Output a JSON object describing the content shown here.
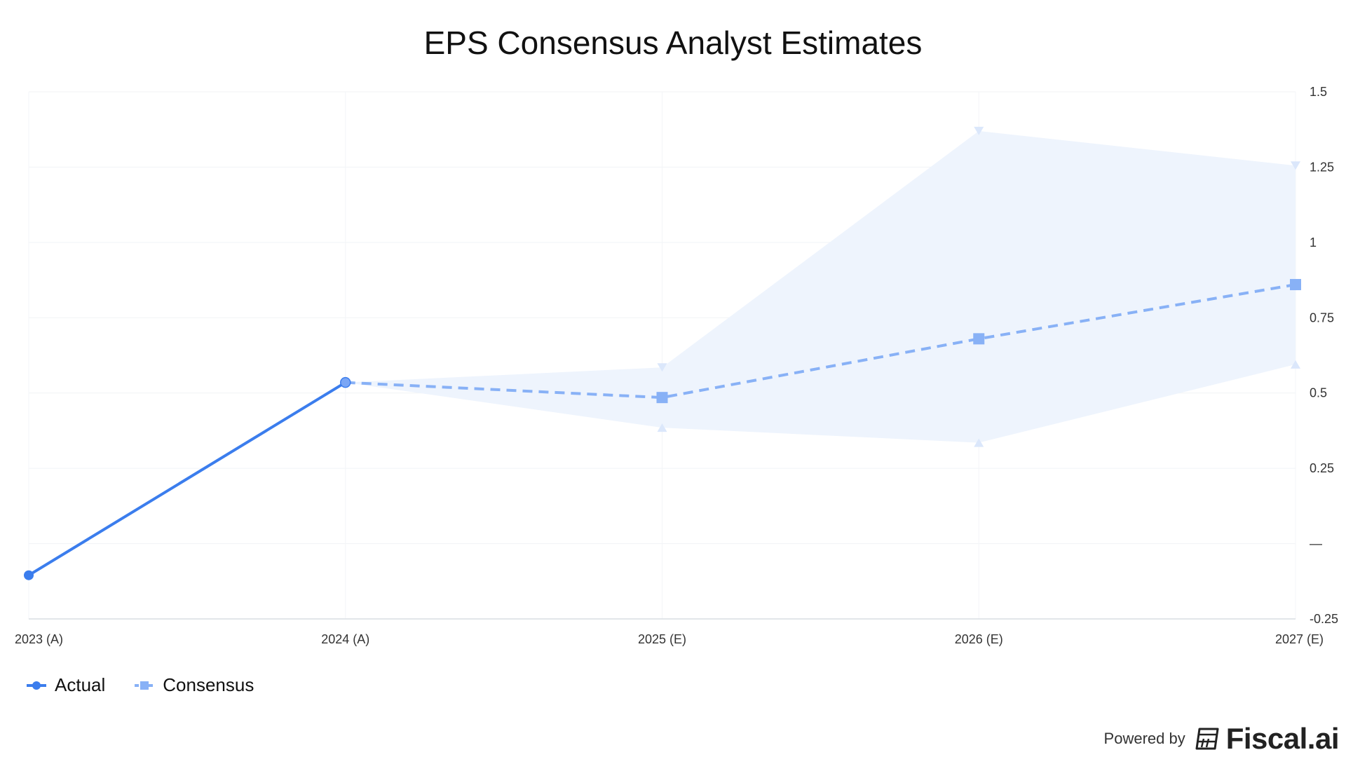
{
  "chart_data": {
    "type": "line",
    "title": "EPS Consensus Analyst Estimates",
    "xlabel": "",
    "ylabel": "",
    "categories": [
      "2023 (A)",
      "2024 (A)",
      "2025 (E)",
      "2026 (E)",
      "2027 (E)"
    ],
    "y_ticks": [
      {
        "value": 1.5,
        "label": "1.5"
      },
      {
        "value": 1.25,
        "label": "1.25"
      },
      {
        "value": 1.0,
        "label": "1"
      },
      {
        "value": 0.75,
        "label": "0.75"
      },
      {
        "value": 0.5,
        "label": "0.5"
      },
      {
        "value": 0.25,
        "label": "0.25"
      },
      {
        "value": 0.0,
        "label": "—"
      },
      {
        "value": -0.25,
        "label": "-0.25"
      }
    ],
    "ylim": [
      -0.25,
      1.5
    ],
    "grid": true,
    "legend_position": "bottom-left",
    "series": [
      {
        "name": "Actual",
        "color": "#3b7ded",
        "marker": "circle",
        "line_style": "solid",
        "values": [
          -0.105,
          0.535,
          null,
          null,
          null
        ]
      },
      {
        "name": "Consensus",
        "color": "#88b1f6",
        "marker": "square",
        "line_style": "dashed",
        "values": [
          null,
          0.535,
          0.485,
          0.68,
          0.86
        ]
      }
    ],
    "estimate_range": {
      "color": "#eef4fd",
      "high": [
        null,
        0.535,
        0.585,
        1.37,
        1.255
      ],
      "low": [
        null,
        0.535,
        0.385,
        0.335,
        0.595
      ]
    }
  },
  "footer": {
    "powered_by": "Powered by",
    "brand": "Fiscal.ai"
  }
}
